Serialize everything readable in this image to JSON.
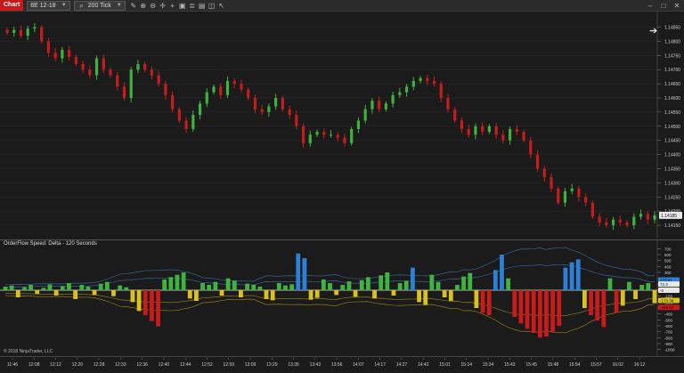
{
  "toolbar": {
    "tab_label": "Chart",
    "instrument": "6E 12-18",
    "interval": "200 Tick",
    "icons": [
      "search-icon",
      "pencil-icon",
      "zoom-in-icon",
      "zoom-out-icon",
      "crosshair-icon",
      "plus-icon",
      "box-icon",
      "properties-icon",
      "template-icon",
      "window-icon",
      "cursor-icon"
    ],
    "window_controls": [
      "minimize-icon",
      "maximize-icon",
      "close-icon"
    ]
  },
  "colors": {
    "background": "#1b1b1b",
    "up_bar": "#3fb23f",
    "down_bar": "#c81c1c",
    "delta_blue": "#2e7fd6",
    "delta_green": "#3fb23f",
    "delta_red": "#c81c1c",
    "delta_yellow": "#d9c21c",
    "band_line": "#3a6fb0",
    "band_line_lower": "#a08a1a"
  },
  "indicator": {
    "title": "OrderFlow Speed: Delta - 120 Seconds"
  },
  "copyright": "© 2018 NinjaTrader, LLC",
  "price_axis": {
    "ticks": [
      "1.14850",
      "1.14800",
      "1.14750",
      "1.14700",
      "1.14650",
      "1.14600",
      "1.14550",
      "1.14500",
      "1.14450",
      "1.14400",
      "1.14350",
      "1.14300",
      "1.14250",
      "1.14200",
      "1.14150"
    ],
    "last_price": "1.14185"
  },
  "delta_axis": {
    "ticks": [
      "700",
      "600",
      "500",
      "400",
      "300",
      "200",
      "100",
      "0",
      "-100",
      "-200",
      "-300",
      "-400",
      "-500",
      "-600",
      "-700",
      "-800",
      "-900",
      "-1000"
    ],
    "labels": [
      "173.01",
      "100.57",
      "72.3",
      "-0",
      "-173.36",
      "-288.92"
    ]
  },
  "time_axis": {
    "ticks": [
      "11:46",
      "12:08",
      "12:12",
      "12:20",
      "12:28",
      "12:33",
      "12:36",
      "12:40",
      "12:44",
      "12:52",
      "12:59",
      "13:09",
      "13:29",
      "13:35",
      "13:43",
      "13:56",
      "14:07",
      "14:17",
      "14:27",
      "14:42",
      "15:01",
      "15:14",
      "15:34",
      "15:43",
      "15:45",
      "15:48",
      "15:54",
      "15:57",
      "16:02",
      "16:12"
    ]
  },
  "chart_data": [
    {
      "type": "candlestick",
      "title": "",
      "y_range": [
        1.14125,
        1.1488
      ],
      "closes": [
        1.1483,
        1.1484,
        1.1482,
        1.14845,
        1.1485,
        1.148,
        1.1476,
        1.1474,
        1.1477,
        1.14745,
        1.1472,
        1.147,
        1.1468,
        1.1474,
        1.147,
        1.1468,
        1.1464,
        1.146,
        1.147,
        1.1472,
        1.147,
        1.1468,
        1.1465,
        1.1461,
        1.1456,
        1.1452,
        1.1449,
        1.1454,
        1.1458,
        1.1462,
        1.1464,
        1.1461,
        1.1466,
        1.1465,
        1.1463,
        1.146,
        1.1456,
        1.1455,
        1.1457,
        1.146,
        1.1456,
        1.1454,
        1.145,
        1.1444,
        1.1447,
        1.1448,
        1.1447,
        1.1447,
        1.1446,
        1.1444,
        1.1449,
        1.1452,
        1.1456,
        1.1459,
        1.1456,
        1.1458,
        1.1461,
        1.1462,
        1.1464,
        1.1466,
        1.1467,
        1.1466,
        1.1465,
        1.146,
        1.1456,
        1.1452,
        1.1449,
        1.1447,
        1.145,
        1.1448,
        1.145,
        1.1447,
        1.1445,
        1.1449,
        1.1448,
        1.1445,
        1.144,
        1.1435,
        1.1432,
        1.1428,
        1.1423,
        1.1427,
        1.1428,
        1.1425,
        1.1423,
        1.1418,
        1.1416,
        1.1415,
        1.1417,
        1.1416,
        1.1415,
        1.1418,
        1.1419,
        1.1417,
        1.14185
      ]
    },
    {
      "type": "bar",
      "title": "OrderFlow Speed: Delta - 120 Seconds",
      "y_range": [
        -1050,
        750
      ],
      "values": [
        60,
        80,
        -120,
        50,
        90,
        -60,
        40,
        100,
        -90,
        70,
        120,
        -150,
        90,
        60,
        -80,
        110,
        140,
        -100,
        80,
        50,
        -200,
        -350,
        -420,
        -520,
        -610,
        180,
        220,
        260,
        300,
        -140,
        -180,
        120,
        90,
        140,
        -90,
        200,
        160,
        -120,
        110,
        90,
        60,
        -150,
        -170,
        120,
        80,
        100,
        620,
        540,
        -160,
        -130,
        180,
        120,
        -80,
        90,
        150,
        -110,
        170,
        220,
        -140,
        250,
        300,
        -90,
        120,
        160,
        380,
        -200,
        -250,
        260,
        140,
        -120,
        -180,
        90,
        230,
        290,
        -300,
        -380,
        -420,
        340,
        600,
        200,
        -450,
        -560,
        -650,
        -720,
        -800,
        -780,
        -700,
        -600,
        380,
        470,
        520,
        -300,
        -420,
        -510,
        -620,
        200,
        -380,
        -260,
        140,
        -150,
        90,
        120,
        -220
      ]
    }
  ]
}
